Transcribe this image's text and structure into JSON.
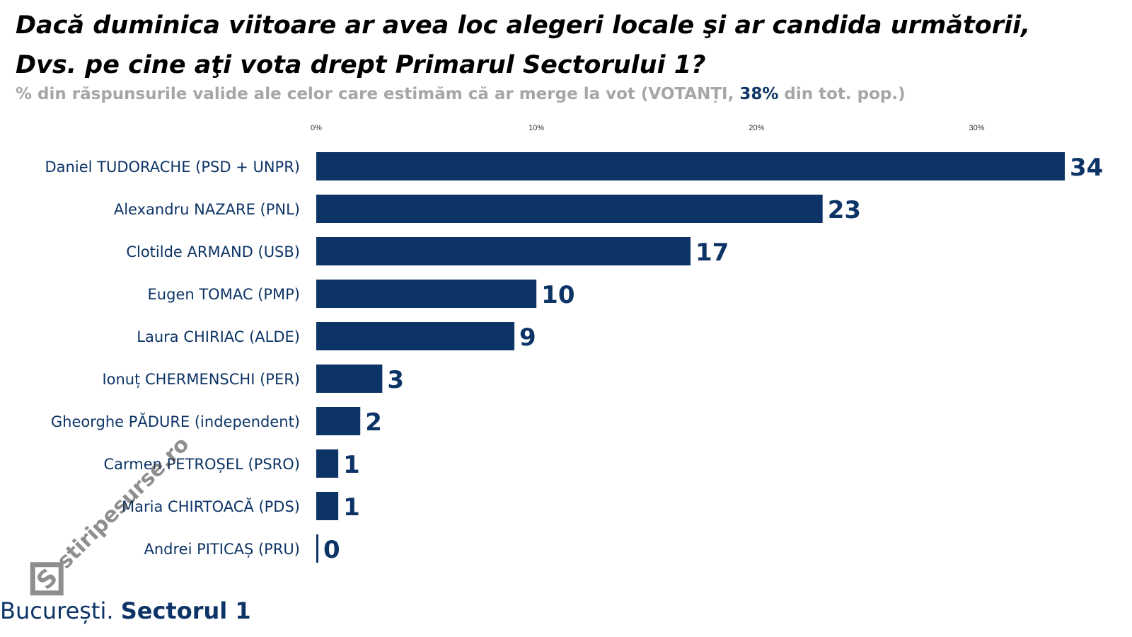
{
  "title": {
    "line1": "Dacă duminica viitoare ar avea loc alegeri locale şi ar candida următorii,",
    "line2": "Dvs. pe cine aţi vota drept Primarul Sectorului 1?"
  },
  "subtitle": {
    "prefix": "% din răspunsurile valide ale celor care estimăm că ar merge la vot (VOTANȚI, ",
    "highlight": "38%",
    "suffix": " din tot. pop.)"
  },
  "footer": {
    "city": "București. ",
    "sector": "Sectorul 1"
  },
  "watermark": "stiripesurse.ro",
  "colors": {
    "bar": "#0d3466",
    "label": "#0d3466",
    "subtitle": "#a6a6a6"
  },
  "chart_data": {
    "type": "bar",
    "orientation": "horizontal",
    "title": "Dacă duminica viitoare ar avea loc alegeri locale şi ar candida următorii, Dvs. pe cine aţi vota drept Primarul Sectorului 1?",
    "xlabel": "",
    "ylabel": "",
    "xlim": [
      0,
      34
    ],
    "ticks": [
      0,
      10,
      20,
      30
    ],
    "tick_labels": [
      "0%",
      "10%",
      "20%",
      "30%"
    ],
    "grid": false,
    "categories": [
      "Daniel TUDORACHE (PSD + UNPR)",
      "Alexandru NAZARE (PNL)",
      "Clotilde ARMAND (USB)",
      "Eugen TOMAC (PMP)",
      "Laura CHIRIAC (ALDE)",
      "Ionuț CHERMENSCHI (PER)",
      "Gheorghe PĂDURE (independent)",
      "Carmen PETROȘEL (PSRO)",
      "Maria CHIRTOACĂ (PDS)",
      "Andrei PITICAȘ (PRU)"
    ],
    "values": [
      34,
      23,
      17,
      10,
      9,
      3,
      2,
      1,
      1,
      0
    ],
    "data_labels": [
      "34",
      "23",
      "17",
      "10",
      "9",
      "3",
      "2",
      "1",
      "1",
      "0"
    ]
  }
}
